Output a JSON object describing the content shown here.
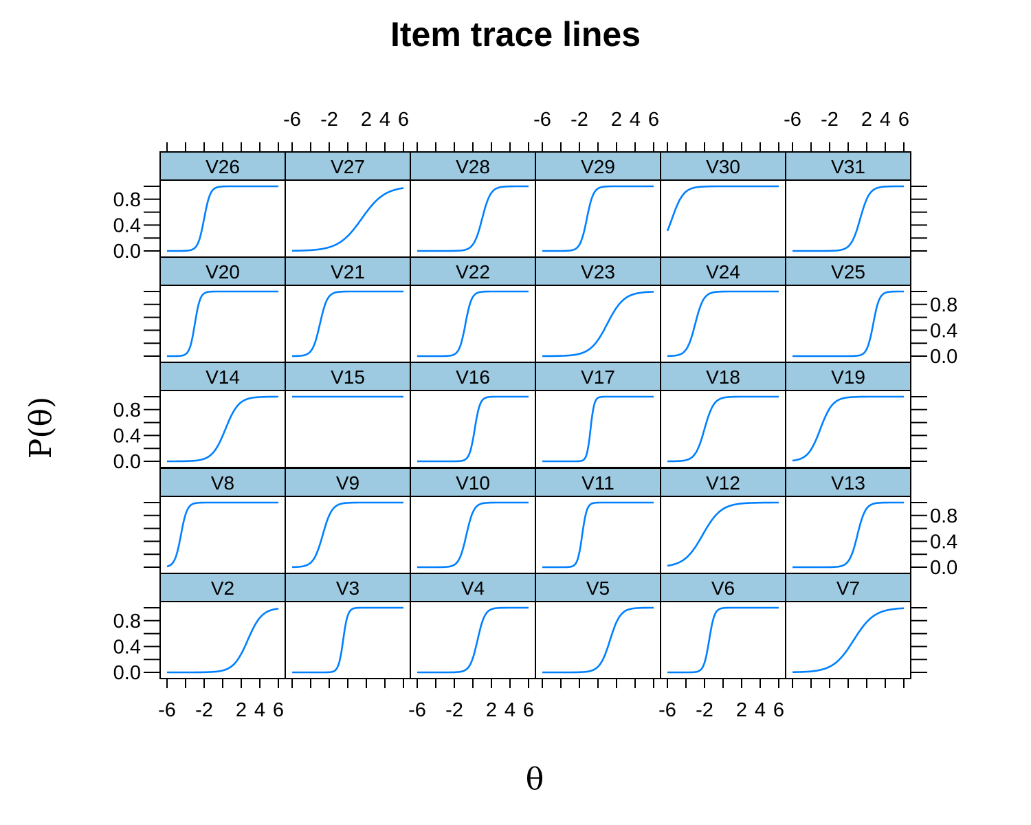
{
  "chart_data": {
    "type": "line",
    "title": "Item trace lines",
    "xlabel": "θ",
    "ylabel": "P(θ)",
    "xlim": [
      -6,
      6
    ],
    "ylim": [
      0,
      1
    ],
    "x_ticks": [
      -6,
      -4,
      -2,
      0,
      2,
      4,
      6
    ],
    "x_tick_labels": [
      "-6",
      "-2",
      "2",
      "4",
      "6"
    ],
    "x_tick_label_values": [
      -6,
      -2,
      2,
      4,
      6
    ],
    "y_ticks": [
      0,
      0.2,
      0.4,
      0.6,
      0.8,
      1.0
    ],
    "y_tick_labels": [
      "0.0",
      "0.4",
      "0.8"
    ],
    "y_tick_label_values": [
      0,
      0.4,
      0.8
    ],
    "layout": "6 columns x 5 rows, panels fill from bottom-left",
    "line_color": "#0080ff",
    "strip_color": "#9ecae1",
    "theta_grid": [
      -6,
      -5.5,
      -5,
      -4.5,
      -4,
      -3.5,
      -3,
      -2.5,
      -2,
      -1.5,
      -1,
      -0.5,
      0,
      0.5,
      1,
      1.5,
      2,
      2.5,
      3,
      3.5,
      4,
      4.5,
      5,
      5.5,
      6
    ],
    "panels": [
      {
        "name": "V2",
        "a": 1.3,
        "b": 2.7,
        "P": [
          0,
          0,
          0,
          0,
          0,
          0,
          0,
          0,
          0,
          0,
          0.01,
          0.01,
          0.03,
          0.05,
          0.1,
          0.18,
          0.3,
          0.46,
          0.63,
          0.77,
          0.87,
          0.93,
          0.96,
          0.98,
          0.99
        ]
      },
      {
        "name": "V3",
        "a": 4.0,
        "b": -0.5,
        "P": [
          0,
          0,
          0,
          0,
          0,
          0,
          0,
          0,
          0,
          0,
          0.02,
          0.12,
          0.5,
          0.88,
          0.98,
          1,
          1,
          1,
          1,
          1,
          1,
          1,
          1,
          1,
          1
        ]
      },
      {
        "name": "V4",
        "a": 2.5,
        "b": 0.5,
        "P": [
          0,
          0,
          0,
          0,
          0,
          0,
          0,
          0,
          0,
          0,
          0,
          0.01,
          0.08,
          0.5,
          0.92,
          0.99,
          1,
          1,
          1,
          1,
          1,
          1,
          1,
          1,
          1
        ]
      },
      {
        "name": "V5",
        "a": 1.8,
        "b": 1.3,
        "P": [
          0,
          0,
          0,
          0,
          0,
          0,
          0,
          0,
          0,
          0,
          0,
          0.02,
          0.07,
          0.21,
          0.47,
          0.74,
          0.9,
          0.97,
          0.99,
          1,
          1,
          1,
          1,
          1,
          1
        ]
      },
      {
        "name": "V6",
        "a": 3.5,
        "b": -1.5,
        "P": [
          0,
          0,
          0,
          0,
          0,
          0,
          0,
          0,
          0,
          0.03,
          0.15,
          0.51,
          0.85,
          0.97,
          0.99,
          1,
          1,
          1,
          1,
          1,
          1,
          1,
          1,
          1,
          1
        ]
      },
      {
        "name": "V7",
        "a": 0.9,
        "b": 0.6,
        "P": [
          0,
          0.01,
          0.01,
          0.01,
          0.02,
          0.03,
          0.04,
          0.06,
          0.09,
          0.13,
          0.19,
          0.27,
          0.37,
          0.47,
          0.58,
          0.68,
          0.77,
          0.84,
          0.89,
          0.93,
          0.95,
          0.97,
          0.98,
          0.99,
          0.99
        ]
      },
      {
        "name": "V8",
        "a": 3.0,
        "b": -4.5,
        "P": [
          0.02,
          0.1,
          0.41,
          0.82,
          0.96,
          0.99,
          1,
          1,
          1,
          1,
          1,
          1,
          1,
          1,
          1,
          1,
          1,
          1,
          1,
          1,
          1,
          1,
          1,
          1,
          1
        ]
      },
      {
        "name": "V9",
        "a": 2.0,
        "b": -2.7,
        "P": [
          0,
          0,
          0,
          0.01,
          0.04,
          0.14,
          0.38,
          0.69,
          0.88,
          0.96,
          0.99,
          1,
          1,
          1,
          1,
          1,
          1,
          1,
          1,
          1,
          1,
          1,
          1,
          1,
          1
        ]
      },
      {
        "name": "V10",
        "a": 2.5,
        "b": -0.7,
        "P": [
          0,
          0,
          0,
          0,
          0,
          0,
          0,
          0,
          0.01,
          0.04,
          0.21,
          0.67,
          0.94,
          0.99,
          1,
          1,
          1,
          1,
          1,
          1,
          1,
          1,
          1,
          1,
          1
        ]
      },
      {
        "name": "V11",
        "a": 4.0,
        "b": -1.7,
        "P": [
          0,
          0,
          0,
          0,
          0,
          0,
          0,
          0,
          0.01,
          0.12,
          0.65,
          0.96,
          1,
          1,
          1,
          1,
          1,
          1,
          1,
          1,
          1,
          1,
          1,
          1,
          1
        ]
      },
      {
        "name": "V12",
        "a": 1.0,
        "b": -2.2,
        "P": [
          0.02,
          0.03,
          0.05,
          0.09,
          0.14,
          0.21,
          0.31,
          0.43,
          0.55,
          0.67,
          0.77,
          0.85,
          0.9,
          0.94,
          0.96,
          0.98,
          0.99,
          0.99,
          0.99,
          1,
          1,
          1,
          1,
          1,
          1
        ]
      },
      {
        "name": "V13",
        "a": 2.3,
        "b": 1.0,
        "P": [
          0,
          0,
          0,
          0,
          0,
          0,
          0,
          0,
          0,
          0,
          0,
          0,
          0.01,
          0.04,
          0.18,
          0.53,
          0.85,
          0.96,
          0.99,
          1,
          1,
          1,
          1,
          1,
          1
        ]
      },
      {
        "name": "V14",
        "a": 1.4,
        "b": 0.3,
        "P": [
          0,
          0,
          0,
          0,
          0,
          0,
          0.01,
          0.01,
          0.02,
          0.05,
          0.11,
          0.22,
          0.4,
          0.62,
          0.79,
          0.9,
          0.95,
          0.98,
          0.99,
          1,
          1,
          1,
          1,
          1,
          1
        ]
      },
      {
        "name": "V15",
        "a": 1.0,
        "b": -20,
        "P": [
          1,
          1,
          1,
          1,
          1,
          1,
          1,
          1,
          1,
          1,
          1,
          1,
          1,
          1,
          1,
          1,
          1,
          1,
          1,
          1,
          1,
          1,
          1,
          1,
          1
        ]
      },
      {
        "name": "V16",
        "a": 3.5,
        "b": 0.2,
        "P": [
          0,
          0,
          0,
          0,
          0,
          0,
          0,
          0,
          0,
          0,
          0,
          0,
          0.33,
          0.94,
          1,
          1,
          1,
          1,
          1,
          1,
          1,
          1,
          1,
          1,
          1
        ]
      },
      {
        "name": "V17",
        "a": 5.0,
        "b": -0.8,
        "P": [
          0,
          0,
          0,
          0,
          0,
          0,
          0,
          0,
          0,
          0,
          0.27,
          0.95,
          1,
          1,
          1,
          1,
          1,
          1,
          1,
          1,
          1,
          1,
          1,
          1,
          1
        ]
      },
      {
        "name": "V18",
        "a": 2.0,
        "b": -2.0,
        "P": [
          0,
          0,
          0,
          0,
          0,
          0,
          0.12,
          0.27,
          0.5,
          0.73,
          0.88,
          0.95,
          0.98,
          0.99,
          1,
          1,
          1,
          1,
          1,
          1,
          1,
          1,
          1,
          1,
          1
        ]
      },
      {
        "name": "V19",
        "a": 1.5,
        "b": -3.0,
        "P": [
          0.01,
          0.02,
          0.05,
          0.1,
          0.18,
          0.32,
          0.5,
          0.68,
          0.82,
          0.9,
          0.95,
          0.98,
          0.99,
          0.99,
          1,
          1,
          1,
          1,
          1,
          1,
          1,
          1,
          1,
          1,
          1
        ]
      },
      {
        "name": "V20",
        "a": 3.5,
        "b": -3.0,
        "P": [
          0,
          0,
          0,
          0,
          0,
          0.03,
          0.5,
          0.97,
          1,
          1,
          1,
          1,
          1,
          1,
          1,
          1,
          1,
          1,
          1,
          1,
          1,
          1,
          1,
          1,
          1
        ]
      },
      {
        "name": "V21",
        "a": 2.5,
        "b": -3.0,
        "P": [
          0,
          0,
          0,
          0.01,
          0.08,
          0.22,
          0.5,
          0.78,
          0.92,
          0.98,
          0.99,
          1,
          1,
          1,
          1,
          1,
          1,
          1,
          1,
          1,
          1,
          1,
          1,
          1,
          1
        ]
      },
      {
        "name": "V22",
        "a": 3.0,
        "b": -0.8,
        "P": [
          0,
          0,
          0,
          0,
          0,
          0,
          0,
          0,
          0,
          0.03,
          0.18,
          0.66,
          0.92,
          0.99,
          1,
          1,
          1,
          1,
          1,
          1,
          1,
          1,
          1,
          1,
          1
        ]
      },
      {
        "name": "V23",
        "a": 1.1,
        "b": 1.0,
        "P": [
          0,
          0,
          0,
          0,
          0,
          0.01,
          0.01,
          0.02,
          0.04,
          0.07,
          0.11,
          0.17,
          0.26,
          0.37,
          0.5,
          0.63,
          0.75,
          0.84,
          0.9,
          0.94,
          0.96,
          0.98,
          0.99,
          0.99,
          1
        ]
      },
      {
        "name": "V24",
        "a": 2.2,
        "b": -3.0,
        "P": [
          0,
          0,
          0.01,
          0.03,
          0.1,
          0.25,
          0.5,
          0.75,
          0.9,
          0.97,
          0.99,
          1,
          1,
          1,
          1,
          1,
          1,
          1,
          1,
          1,
          1,
          1,
          1,
          1,
          1
        ]
      },
      {
        "name": "V25",
        "a": 3.0,
        "b": 2.7,
        "P": [
          0,
          0,
          0,
          0,
          0,
          0,
          0,
          0,
          0,
          0,
          0,
          0,
          0,
          0,
          0,
          0,
          0,
          0.02,
          0.14,
          0.55,
          0.89,
          0.98,
          1,
          1,
          1
        ]
      },
      {
        "name": "V26",
        "a": 3.0,
        "b": -2.0,
        "P": [
          0,
          0,
          0,
          0,
          0,
          0,
          0,
          0.05,
          0.5,
          0.95,
          1,
          1,
          1,
          1,
          1,
          1,
          1,
          1,
          1,
          1,
          1,
          1,
          1,
          1,
          1
        ]
      },
      {
        "name": "V27",
        "a": 0.8,
        "b": 1.5,
        "P": [
          0,
          0.01,
          0.01,
          0.01,
          0.02,
          0.02,
          0.03,
          0.05,
          0.06,
          0.08,
          0.12,
          0.16,
          0.23,
          0.31,
          0.4,
          0.5,
          0.6,
          0.69,
          0.77,
          0.84,
          0.88,
          0.92,
          0.94,
          0.96,
          0.97
        ]
      },
      {
        "name": "V28",
        "a": 2.2,
        "b": 1.0,
        "P": [
          0,
          0,
          0,
          0,
          0,
          0,
          0,
          0,
          0,
          0,
          0,
          0.01,
          0.02,
          0.09,
          0.27,
          0.61,
          0.87,
          0.97,
          0.99,
          1,
          1,
          1,
          1,
          1,
          1
        ]
      },
      {
        "name": "V29",
        "a": 2.8,
        "b": -1.2,
        "P": [
          0,
          0,
          0,
          0,
          0,
          0,
          0,
          0,
          0,
          0.01,
          0.09,
          0.36,
          0.78,
          0.95,
          0.99,
          1,
          1,
          1,
          1,
          1,
          1,
          1,
          1,
          1,
          1
        ]
      },
      {
        "name": "V30",
        "a": 1.6,
        "b": -5.5,
        "P": [
          0.45,
          0.65,
          0.82,
          0.91,
          0.96,
          0.98,
          0.99,
          1,
          1,
          1,
          1,
          1,
          1,
          1,
          1,
          1,
          1,
          1,
          1,
          1,
          1,
          1,
          1,
          1,
          1
        ]
      },
      {
        "name": "V31",
        "a": 2.0,
        "b": 1.3,
        "P": [
          0,
          0,
          0,
          0,
          0,
          0,
          0,
          0,
          0,
          0,
          0,
          0.01,
          0.02,
          0.06,
          0.17,
          0.4,
          0.68,
          0.88,
          0.96,
          0.99,
          1,
          1,
          1,
          1,
          1
        ]
      }
    ]
  }
}
